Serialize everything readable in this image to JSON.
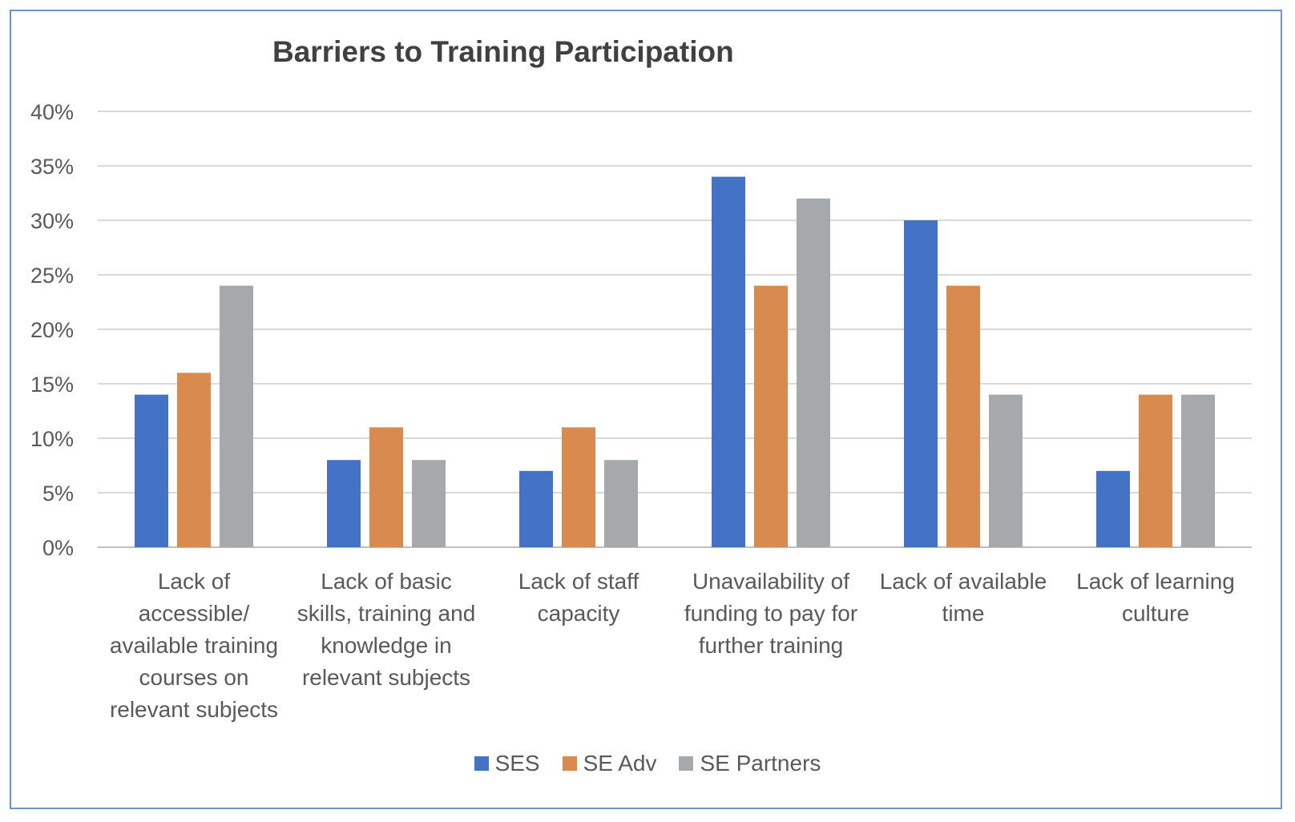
{
  "chart_data": {
    "type": "bar",
    "title": "Barriers to Training Participation",
    "categories": [
      "Lack of accessible/ available training courses on relevant subjects",
      "Lack of basic skills, training and knowledge in relevant subjects",
      "Lack of staff capacity",
      "Unavailability of funding to pay for further training",
      "Lack of available time",
      "Lack of learning culture"
    ],
    "category_lines": [
      [
        "Lack of",
        "accessible/",
        "available training",
        "courses on",
        "relevant subjects"
      ],
      [
        "Lack of basic",
        "skills, training and",
        "knowledge in",
        "relevant subjects"
      ],
      [
        "Lack of staff",
        "capacity"
      ],
      [
        "Unavailability of",
        "funding to pay for",
        "further training"
      ],
      [
        "Lack of available",
        "time"
      ],
      [
        "Lack of learning",
        "culture"
      ]
    ],
    "series": [
      {
        "name": "SES",
        "color": "#4472c4",
        "values": [
          14,
          8,
          7,
          34,
          30,
          7
        ]
      },
      {
        "name": "SE Adv",
        "color": "#d98a4e",
        "values": [
          16,
          11,
          11,
          24,
          24,
          14
        ]
      },
      {
        "name": "SE Partners",
        "color": "#a5a9ac",
        "values": [
          24,
          8,
          8,
          32,
          14,
          14
        ]
      }
    ],
    "ylim": [
      0,
      40
    ],
    "yticks": [
      "0%",
      "5%",
      "10%",
      "15%",
      "20%",
      "25%",
      "30%",
      "35%",
      "40%"
    ],
    "ytick_values": [
      0,
      5,
      10,
      15,
      20,
      25,
      30,
      35,
      40
    ],
    "grid": true,
    "legend_position": "bottom"
  }
}
